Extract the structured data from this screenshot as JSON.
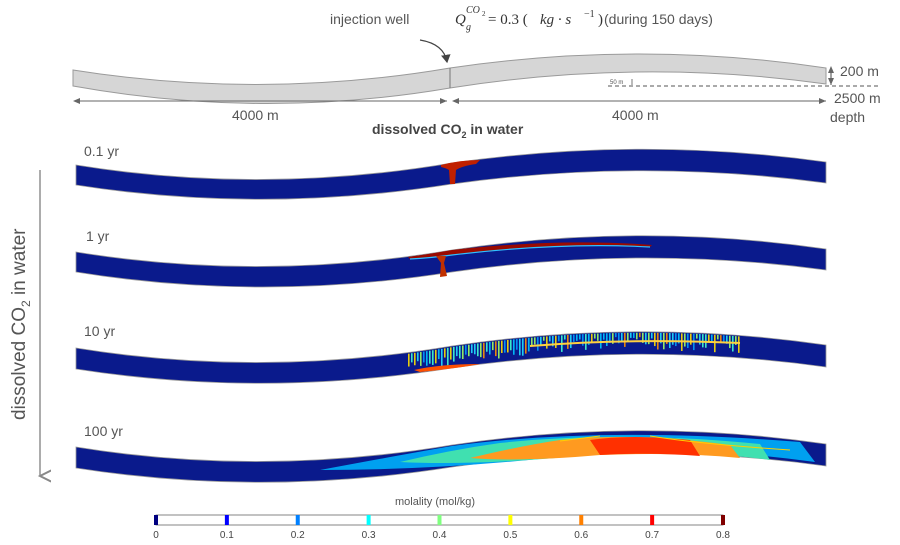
{
  "schematic": {
    "injection_label": "injection well",
    "rate_prefix": "Q",
    "rate_sub": "g",
    "rate_sup": "CO",
    "rate_sup_sub": "2",
    "rate_eq": " = 0.3 (",
    "rate_unit": "kg · s",
    "rate_unit_exp": "−1",
    "rate_close": ")",
    "rate_duration": " (during 150 days)",
    "left_length": "4000 m",
    "right_length": "4000 m",
    "thickness": "200 m",
    "dip_offset": "50 m",
    "depth_value": "2500 m",
    "depth_word": "depth"
  },
  "section_title": {
    "pre": "dissolved CO",
    "sub": "2",
    "post": " in water"
  },
  "side_label": {
    "pre": "dissolved CO",
    "sub": "2",
    "post": " in water"
  },
  "snapshots": [
    {
      "time": "0.1 yr"
    },
    {
      "time": "1 yr"
    },
    {
      "time": "10 yr"
    },
    {
      "time": "100 yr"
    }
  ],
  "colorbar": {
    "title": "molality (mol/kg)",
    "ticks": [
      "0",
      "0.1",
      "0.2",
      "0.3",
      "0.4",
      "0.5",
      "0.6",
      "0.7",
      "0.8"
    ],
    "tick_values": [
      0,
      0.1,
      0.2,
      0.3,
      0.4,
      0.5,
      0.6,
      0.7,
      0.8
    ],
    "range": [
      0,
      0.8
    ],
    "colormap": "jet",
    "colors": [
      "#000080",
      "#0000ff",
      "#0080ff",
      "#00ffff",
      "#80ff80",
      "#ffff00",
      "#ff8000",
      "#ff0000",
      "#800000"
    ]
  },
  "colors": {
    "background_water": "#0a1a8c",
    "aquifer_grey": "#d6d6d6",
    "outline": "#888888"
  }
}
